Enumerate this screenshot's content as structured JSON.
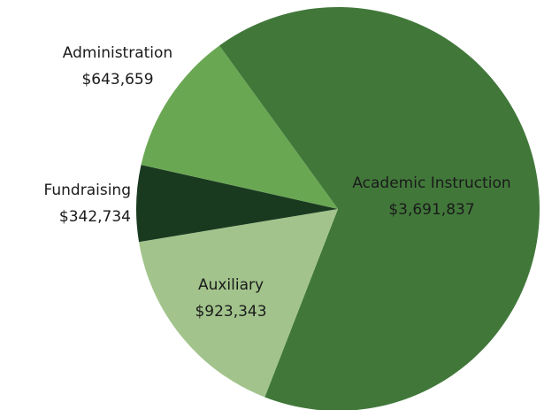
{
  "chart_data": {
    "type": "pie",
    "categories": [
      "Academic Instruction",
      "Auxiliary",
      "Fundraising",
      "Administration"
    ],
    "values": [
      3691837,
      923343,
      342734,
      643659
    ],
    "value_labels": [
      "$3,691,837",
      "$923,343",
      "$342,734",
      "$643,659"
    ],
    "colors": [
      "#41783a",
      "#a2c48c",
      "#1a3a20",
      "#6aa753"
    ]
  }
}
